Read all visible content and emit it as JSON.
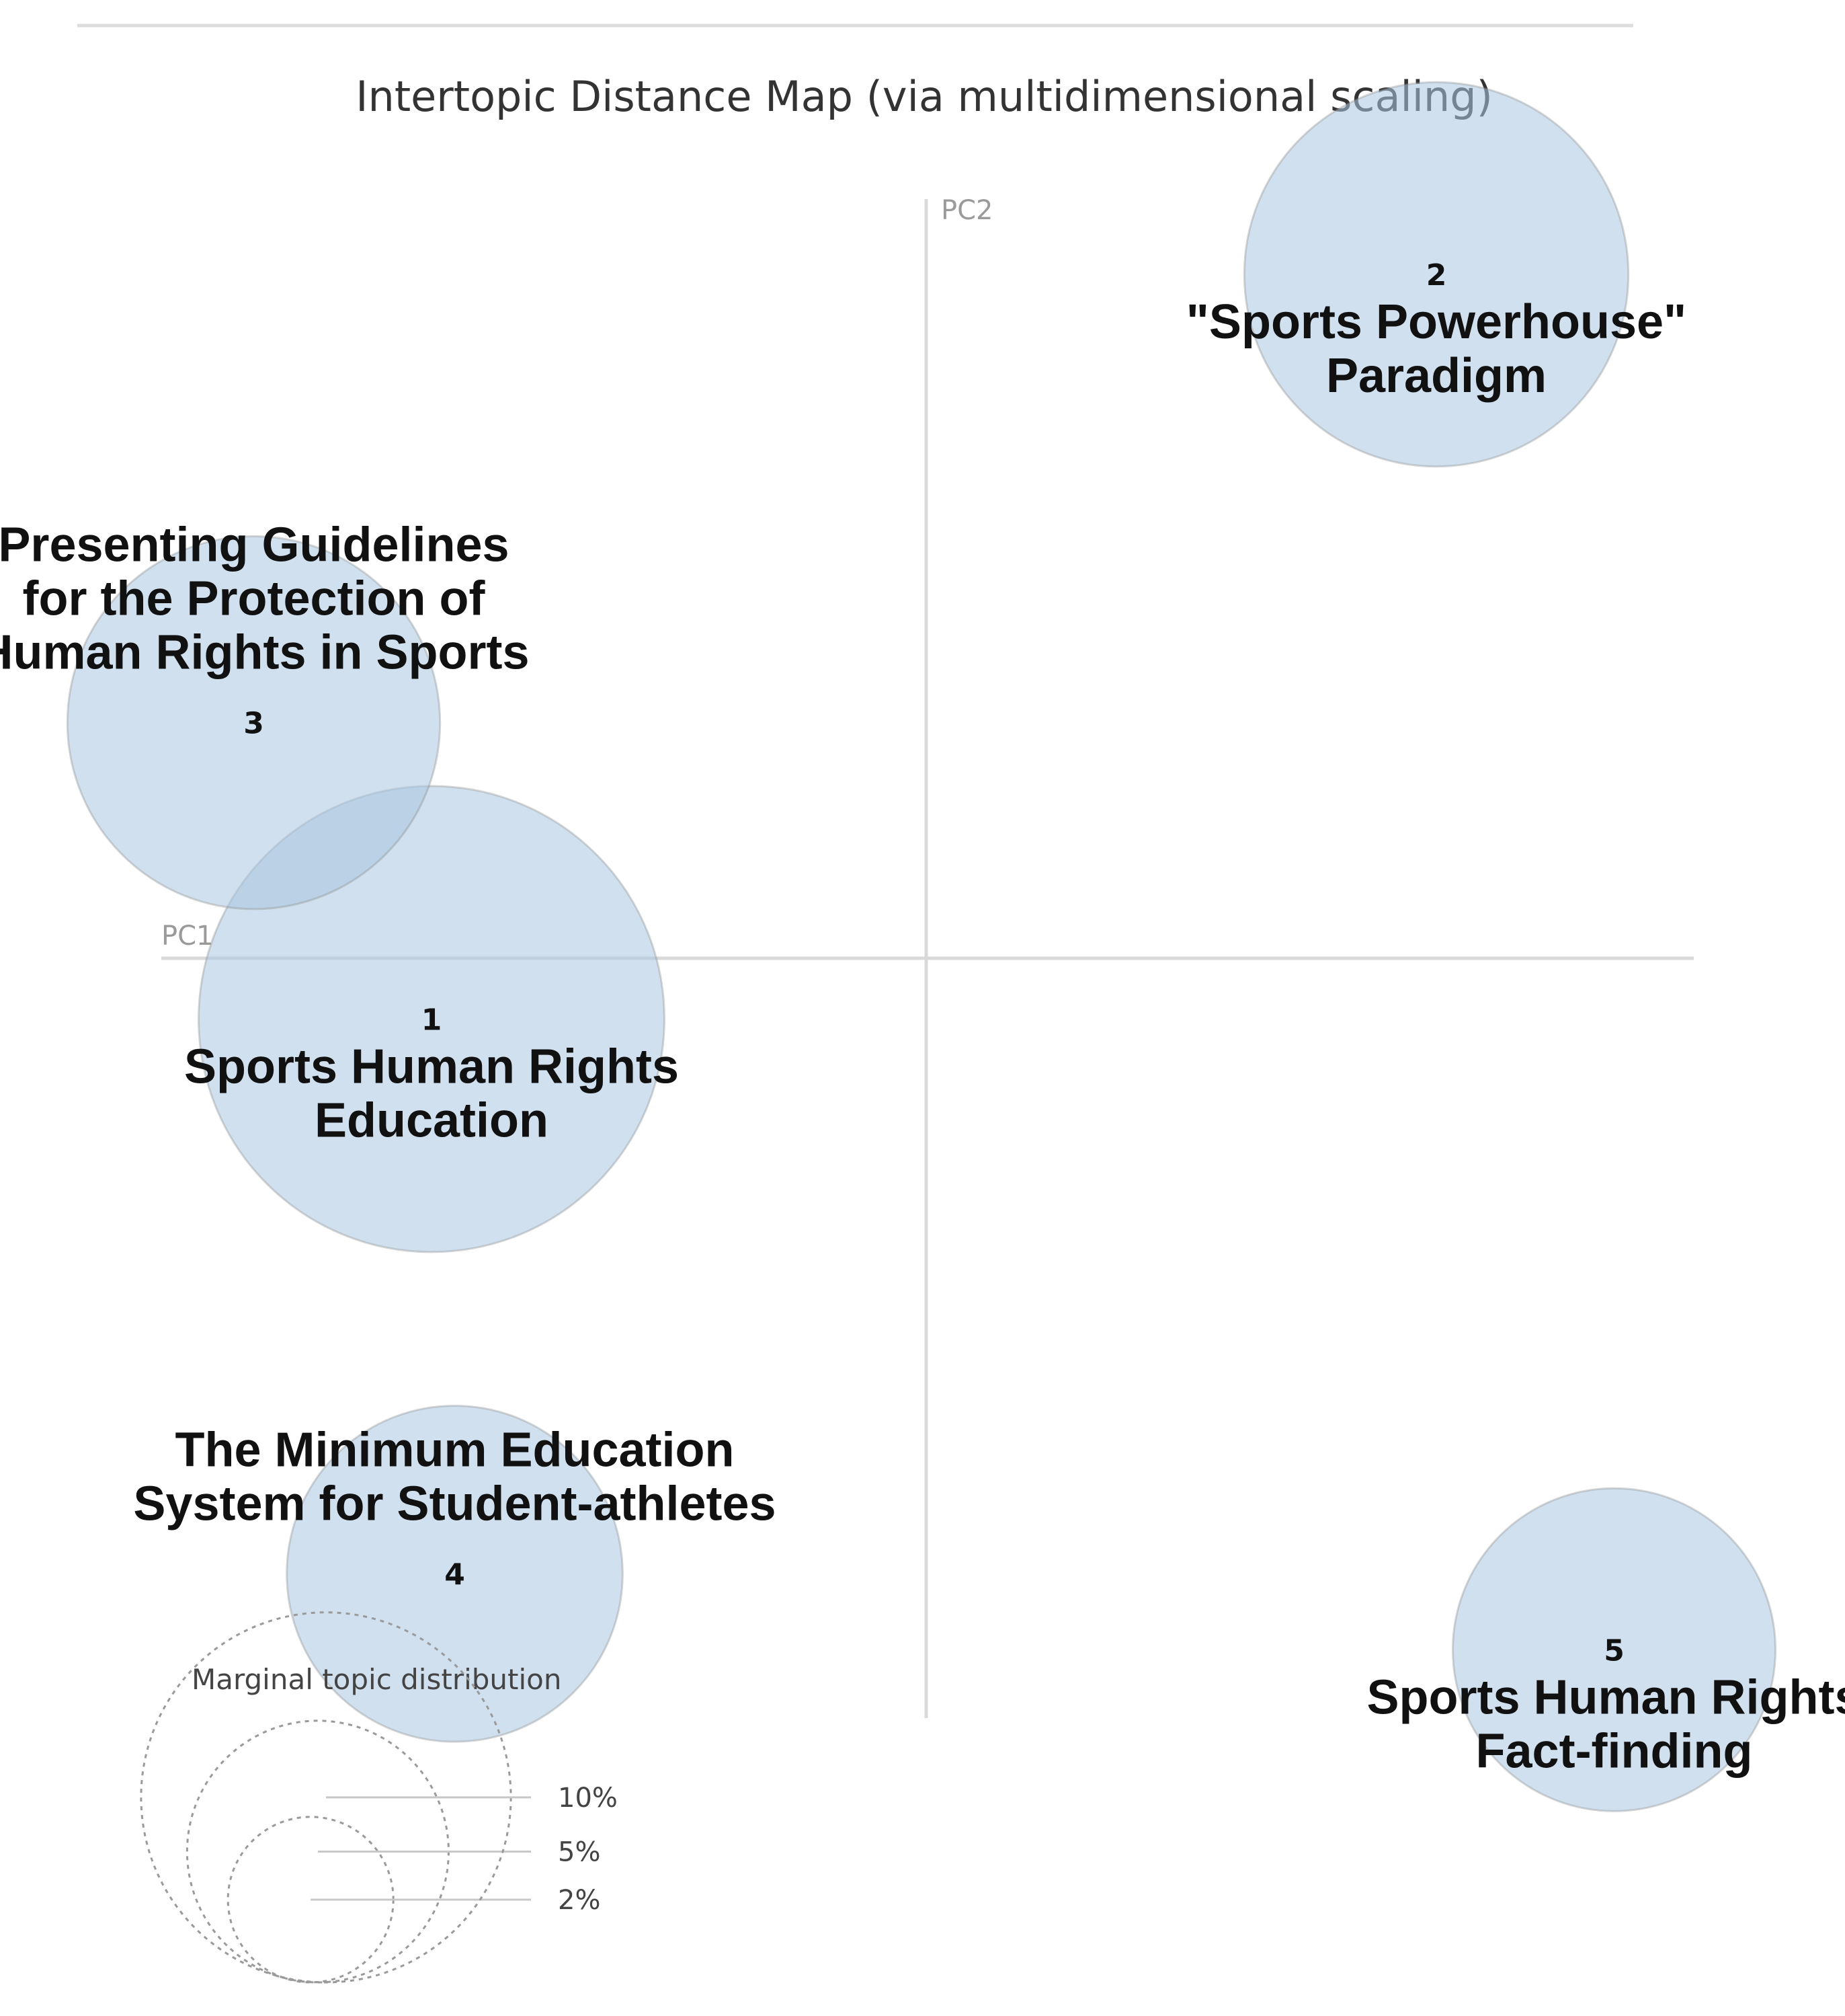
{
  "chart_data": {
    "type": "scatter",
    "title": "Intertopic Distance Map (via multidimensional scaling)",
    "xlabel": "PC1",
    "ylabel": "PC2",
    "xlim": [
      -1,
      1
    ],
    "ylim": [
      -1,
      1
    ],
    "bubble_color": "#a9c6e0",
    "bubble_stroke": "#8a8a8a",
    "topics": [
      {
        "id": "1",
        "name_lines": [
          "Sports Human Rights",
          "Education"
        ],
        "x": -0.64,
        "y": -0.08,
        "share_pct": 12.5
      },
      {
        "id": "2",
        "name_lines": [
          "\"Sports Powerhouse\"",
          "Paradigm"
        ],
        "x": 0.66,
        "y": 0.9,
        "share_pct": 8.5
      },
      {
        "id": "3",
        "name_lines": [
          "Presenting Guidelines",
          "for the Protection of",
          "Human Rights in Sports"
        ],
        "x": -0.87,
        "y": 0.31,
        "share_pct": 8.0
      },
      {
        "id": "4",
        "name_lines": [
          "The Minimum Education",
          "System for Student-athletes"
        ],
        "x": -0.61,
        "y": -0.81,
        "share_pct": 6.5
      },
      {
        "id": "5",
        "name_lines": [
          "Sports Human Rights",
          "Fact-finding"
        ],
        "x": 0.89,
        "y": -0.91,
        "share_pct": 6.0
      }
    ],
    "legend": {
      "title": "Marginal topic distribution",
      "sizes": [
        {
          "label": "2%",
          "pct": 2
        },
        {
          "label": "5%",
          "pct": 5
        },
        {
          "label": "10%",
          "pct": 10
        }
      ]
    }
  }
}
